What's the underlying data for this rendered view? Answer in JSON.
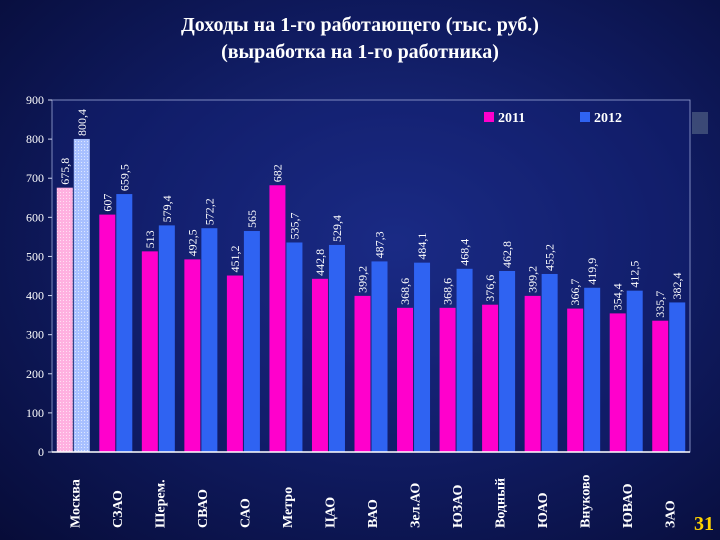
{
  "slide": {
    "title_line1": "Доходы на 1-го работающего (тыс. руб.)",
    "title_line2": "(выработка на 1-го работника)",
    "page_number": "31"
  },
  "chart_data": {
    "type": "bar",
    "title": "Доходы на 1-го работающего (тыс. руб.) (выработка на 1-го работника)",
    "xlabel": "",
    "ylabel": "",
    "ylim": [
      0,
      900
    ],
    "yticks": [
      0,
      100,
      200,
      300,
      400,
      500,
      600,
      700,
      800,
      900
    ],
    "grid": false,
    "legend_position": "top-right",
    "categories": [
      "Москва",
      "СЗАО",
      "Шерем.",
      "СВАО",
      "САО",
      "Метро",
      "ЦАО",
      "ВАО",
      "Зел.АО",
      "ЮЗАО",
      "Водный",
      "ЮАО",
      "Внуково",
      "ЮВАО",
      "ЗАО"
    ],
    "series": [
      {
        "name": "2011",
        "color": "#ff00cc",
        "values": [
          675.8,
          607,
          513,
          492.5,
          451.2,
          682,
          442.8,
          399.2,
          368.6,
          368.6,
          376.6,
          399.2,
          366.7,
          354.4,
          335.7
        ],
        "labels": [
          "675,8",
          "607",
          "513",
          "492,5",
          "451,2",
          "682",
          "442,8",
          "399,2",
          "368,6",
          "368,6",
          "376,6",
          "399,2",
          "366,7",
          "354,4",
          "335,7"
        ]
      },
      {
        "name": "2012",
        "color": "#2f63f2",
        "values": [
          800.4,
          659.5,
          579.4,
          572.2,
          565,
          535.7,
          529.4,
          487.3,
          484.1,
          468.4,
          462.8,
          455.2,
          419.9,
          412.5,
          382.4
        ],
        "labels": [
          "800,4",
          "659,5",
          "579,4",
          "572,2",
          "565",
          "535,7",
          "529,4",
          "487,3",
          "484,1",
          "468,4",
          "462,8",
          "455,2",
          "419,9",
          "412,5",
          "382,4"
        ]
      }
    ],
    "highlight": {
      "category": "Москва",
      "colors": [
        "#ffb6e6",
        "#b4c8ff"
      ]
    }
  }
}
